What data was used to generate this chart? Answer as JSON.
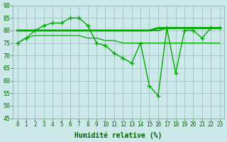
{
  "x": [
    0,
    1,
    2,
    3,
    4,
    5,
    6,
    7,
    8,
    9,
    10,
    11,
    12,
    13,
    14,
    15,
    16,
    17,
    18,
    19,
    20,
    21,
    22,
    23
  ],
  "line_main": [
    75,
    77,
    80,
    82,
    83,
    83,
    85,
    85,
    82,
    75,
    74,
    71,
    69,
    67,
    75,
    58,
    54,
    81,
    63,
    80,
    80,
    77,
    81,
    81
  ],
  "line_slow": [
    75,
    77,
    78,
    78,
    78,
    78,
    78,
    78,
    77,
    77,
    76,
    76,
    75,
    75,
    75,
    75,
    75,
    75,
    75,
    75,
    75,
    75,
    75,
    75
  ],
  "line_flat1": [
    80,
    80,
    80,
    80,
    80,
    80,
    80,
    80,
    80,
    80,
    80,
    80,
    80,
    80,
    80,
    80,
    81,
    81,
    81,
    81,
    81,
    81,
    81,
    81
  ],
  "line_flat2": [
    80,
    80,
    80,
    80,
    80,
    80,
    80,
    80,
    80,
    80,
    80,
    80,
    80,
    80,
    80,
    80,
    80,
    81,
    81,
    81,
    81,
    81,
    81,
    81
  ],
  "line_flat3": [
    80,
    80,
    80,
    80,
    80,
    80,
    80,
    80,
    80,
    80,
    80,
    80,
    80,
    80,
    80,
    80,
    81,
    81,
    81,
    81,
    81,
    81,
    81,
    81
  ],
  "ylim": [
    45,
    90
  ],
  "yticks": [
    45,
    50,
    55,
    60,
    65,
    70,
    75,
    80,
    85,
    90
  ],
  "xlabel": "Humidité relative (%)",
  "line_color": "#00aa00",
  "bg_color": "#cce8e8",
  "grid_color": "#99bbbb",
  "marker": "+",
  "marker_size": 5,
  "figsize": [
    3.2,
    2.0
  ],
  "dpi": 100
}
